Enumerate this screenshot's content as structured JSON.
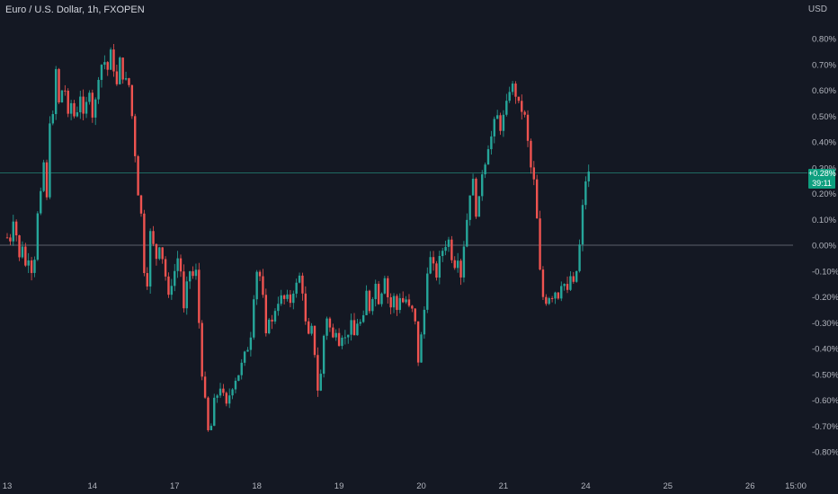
{
  "header": {
    "title": "Euro / U.S. Dollar, 1h, FXOPEN",
    "currency": "USD"
  },
  "badge": {
    "change": "+0.28%",
    "countdown": "39:11"
  },
  "colors": {
    "background": "#141823",
    "up": "#26a69a",
    "down": "#ef5350",
    "badge": "#0e9f7f"
  },
  "chart_data": {
    "type": "candlestick",
    "ylim": [
      -0.85,
      0.85
    ],
    "y_unit": "%",
    "yticks": [
      "0.80%",
      "0.70%",
      "0.60%",
      "0.50%",
      "0.40%",
      "0.30%",
      "0.20%",
      "0.10%",
      "0.00%",
      "-0.10%",
      "-0.20%",
      "-0.30%",
      "-0.40%",
      "-0.50%",
      "-0.60%",
      "-0.70%",
      "-0.80%"
    ],
    "ytick_values": [
      0.8,
      0.7,
      0.6,
      0.5,
      0.4,
      0.3,
      0.2,
      0.1,
      0,
      -0.1,
      -0.2,
      -0.3,
      -0.4,
      -0.5,
      -0.6,
      -0.7,
      -0.8
    ],
    "xticks": [
      "13",
      "14",
      "17",
      "18",
      "19",
      "20",
      "21",
      "24",
      "25",
      "26",
      "15:00"
    ],
    "xtick_index": [
      0,
      28,
      55,
      82,
      109,
      136,
      163,
      190,
      217,
      244,
      259
    ],
    "last_value": 0.28,
    "baseline": 0.0,
    "grid": false,
    "path": [
      [
        0,
        0.03
      ],
      [
        1,
        0.02
      ],
      [
        2,
        0.1
      ],
      [
        3,
        0.04
      ],
      [
        4,
        -0.05
      ],
      [
        5,
        0.0
      ],
      [
        6,
        -0.08
      ],
      [
        7,
        -0.05
      ],
      [
        8,
        -0.1
      ],
      [
        9,
        -0.05
      ],
      [
        10,
        0.12
      ],
      [
        11,
        0.2
      ],
      [
        12,
        0.32
      ],
      [
        13,
        0.18
      ],
      [
        14,
        0.48
      ],
      [
        15,
        0.5
      ],
      [
        16,
        0.68
      ],
      [
        17,
        0.55
      ],
      [
        18,
        0.6
      ],
      [
        19,
        0.6
      ],
      [
        20,
        0.5
      ],
      [
        21,
        0.55
      ],
      [
        22,
        0.5
      ],
      [
        23,
        0.52
      ],
      [
        24,
        0.58
      ],
      [
        25,
        0.5
      ],
      [
        26,
        0.55
      ],
      [
        27,
        0.6
      ],
      [
        28,
        0.5
      ],
      [
        29,
        0.56
      ],
      [
        30,
        0.65
      ],
      [
        31,
        0.7
      ],
      [
        32,
        0.71
      ],
      [
        33,
        0.68
      ],
      [
        34,
        0.75
      ],
      [
        35,
        0.68
      ],
      [
        36,
        0.62
      ],
      [
        37,
        0.72
      ],
      [
        38,
        0.65
      ],
      [
        39,
        0.64
      ],
      [
        40,
        0.62
      ],
      [
        41,
        0.5
      ],
      [
        42,
        0.35
      ],
      [
        43,
        0.2
      ],
      [
        44,
        0.12
      ],
      [
        45,
        -0.1
      ],
      [
        46,
        -0.15
      ],
      [
        47,
        0.05
      ],
      [
        48,
        0.0
      ],
      [
        49,
        -0.05
      ],
      [
        50,
        0.0
      ],
      [
        51,
        -0.05
      ],
      [
        52,
        -0.12
      ],
      [
        53,
        -0.2
      ],
      [
        54,
        -0.15
      ],
      [
        55,
        -0.1
      ],
      [
        56,
        -0.05
      ],
      [
        57,
        -0.1
      ],
      [
        58,
        -0.25
      ],
      [
        59,
        -0.15
      ],
      [
        60,
        -0.1
      ],
      [
        61,
        -0.12
      ],
      [
        62,
        -0.1
      ],
      [
        63,
        -0.3
      ],
      [
        64,
        -0.5
      ],
      [
        65,
        -0.6
      ],
      [
        66,
        -0.72
      ],
      [
        67,
        -0.7
      ],
      [
        68,
        -0.6
      ],
      [
        69,
        -0.58
      ],
      [
        70,
        -0.55
      ],
      [
        71,
        -0.58
      ],
      [
        72,
        -0.62
      ],
      [
        73,
        -0.58
      ],
      [
        74,
        -0.55
      ],
      [
        75,
        -0.52
      ],
      [
        76,
        -0.5
      ],
      [
        77,
        -0.46
      ],
      [
        78,
        -0.42
      ],
      [
        79,
        -0.4
      ],
      [
        80,
        -0.35
      ],
      [
        81,
        -0.2
      ],
      [
        82,
        -0.1
      ],
      [
        83,
        -0.12
      ],
      [
        84,
        -0.2
      ],
      [
        85,
        -0.35
      ],
      [
        86,
        -0.28
      ],
      [
        87,
        -0.3
      ],
      [
        88,
        -0.25
      ],
      [
        89,
        -0.22
      ],
      [
        90,
        -0.2
      ],
      [
        91,
        -0.21
      ],
      [
        92,
        -0.2
      ],
      [
        93,
        -0.22
      ],
      [
        94,
        -0.18
      ],
      [
        95,
        -0.15
      ],
      [
        96,
        -0.12
      ],
      [
        97,
        -0.18
      ],
      [
        98,
        -0.3
      ],
      [
        99,
        -0.35
      ],
      [
        100,
        -0.32
      ],
      [
        101,
        -0.42
      ],
      [
        102,
        -0.56
      ],
      [
        103,
        -0.5
      ],
      [
        104,
        -0.35
      ],
      [
        105,
        -0.28
      ],
      [
        106,
        -0.32
      ],
      [
        107,
        -0.36
      ],
      [
        108,
        -0.33
      ],
      [
        109,
        -0.38
      ],
      [
        110,
        -0.35
      ],
      [
        111,
        -0.36
      ],
      [
        112,
        -0.34
      ],
      [
        113,
        -0.3
      ],
      [
        114,
        -0.35
      ],
      [
        115,
        -0.3
      ],
      [
        116,
        -0.3
      ],
      [
        117,
        -0.28
      ],
      [
        118,
        -0.18
      ],
      [
        119,
        -0.25
      ],
      [
        120,
        -0.2
      ],
      [
        121,
        -0.15
      ],
      [
        122,
        -0.22
      ],
      [
        123,
        -0.18
      ],
      [
        124,
        -0.12
      ],
      [
        125,
        -0.2
      ],
      [
        126,
        -0.24
      ],
      [
        127,
        -0.2
      ],
      [
        128,
        -0.25
      ],
      [
        129,
        -0.2
      ],
      [
        130,
        -0.22
      ],
      [
        131,
        -0.21
      ],
      [
        132,
        -0.24
      ],
      [
        133,
        -0.25
      ],
      [
        134,
        -0.3
      ],
      [
        135,
        -0.45
      ],
      [
        136,
        -0.35
      ],
      [
        137,
        -0.25
      ],
      [
        138,
        -0.1
      ],
      [
        139,
        -0.05
      ],
      [
        140,
        -0.08
      ],
      [
        141,
        -0.12
      ],
      [
        142,
        -0.05
      ],
      [
        143,
        -0.02
      ],
      [
        144,
        0.0
      ],
      [
        145,
        0.02
      ],
      [
        146,
        -0.05
      ],
      [
        147,
        -0.08
      ],
      [
        148,
        -0.05
      ],
      [
        149,
        -0.12
      ],
      [
        150,
        0.0
      ],
      [
        151,
        0.1
      ],
      [
        152,
        0.2
      ],
      [
        153,
        0.25
      ],
      [
        154,
        0.12
      ],
      [
        155,
        0.18
      ],
      [
        156,
        0.28
      ],
      [
        157,
        0.32
      ],
      [
        158,
        0.38
      ],
      [
        159,
        0.42
      ],
      [
        160,
        0.48
      ],
      [
        161,
        0.5
      ],
      [
        162,
        0.45
      ],
      [
        163,
        0.5
      ],
      [
        164,
        0.55
      ],
      [
        165,
        0.6
      ],
      [
        166,
        0.62
      ],
      [
        167,
        0.58
      ],
      [
        168,
        0.55
      ],
      [
        169,
        0.52
      ],
      [
        170,
        0.5
      ],
      [
        171,
        0.4
      ],
      [
        172,
        0.3
      ],
      [
        173,
        0.25
      ],
      [
        174,
        0.1
      ],
      [
        175,
        -0.1
      ],
      [
        176,
        -0.2
      ],
      [
        177,
        -0.22
      ],
      [
        178,
        -0.2
      ],
      [
        179,
        -0.2
      ],
      [
        180,
        -0.18
      ],
      [
        181,
        -0.2
      ],
      [
        182,
        -0.15
      ],
      [
        183,
        -0.15
      ],
      [
        184,
        -0.18
      ],
      [
        185,
        -0.12
      ],
      [
        186,
        -0.15
      ],
      [
        187,
        -0.1
      ],
      [
        188,
        0.0
      ],
      [
        189,
        0.15
      ],
      [
        190,
        0.25
      ],
      [
        191,
        0.28
      ]
    ]
  }
}
